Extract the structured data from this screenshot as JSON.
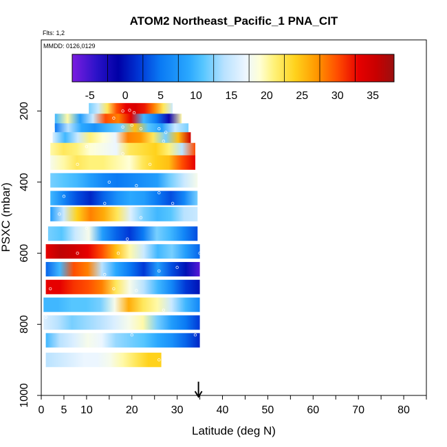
{
  "chart_data": {
    "type": "heatmap",
    "title": "ATOM2 Northeast_Pacific_1 PNA_CIT",
    "annotations": {
      "flights": "Flts: 1,2",
      "dates": "MMDD: 0126,0129"
    },
    "xlabel": "Latitude (deg N)",
    "ylabel": "PSXC (mbar)",
    "xlim": [
      0,
      85
    ],
    "ylim": [
      1000,
      0
    ],
    "x_ticks": [
      0,
      5,
      10,
      20,
      30,
      40,
      50,
      60,
      70,
      80
    ],
    "x_tick_labels": [
      "0",
      "5",
      "10",
      "20",
      "30",
      "40",
      "50",
      "60",
      "70",
      "80"
    ],
    "x_minor_ticks": [
      15,
      25,
      35,
      45,
      55,
      65,
      75,
      85
    ],
    "y_ticks": [
      200,
      400,
      600,
      800,
      1000
    ],
    "y_tick_labels": [
      "200",
      "400",
      "600",
      "800",
      "1000"
    ],
    "marker": {
      "latitude": 34.7,
      "symbol": "down-arrow"
    },
    "colorbar": {
      "min": -7.5,
      "max": 38,
      "ticks": [
        -5,
        0,
        5,
        10,
        15,
        20,
        25,
        30,
        35
      ],
      "tick_labels": [
        "-5",
        "0",
        "5",
        "10",
        "15",
        "20",
        "25",
        "30",
        "35"
      ],
      "divisions": [
        -7.5,
        -2.5,
        2.5,
        7.5,
        12.5,
        17.5,
        22.5,
        27.5,
        32.5,
        38
      ],
      "stops": [
        {
          "v": -7.5,
          "c": "#7b1de0"
        },
        {
          "v": -4,
          "c": "#2a12c8"
        },
        {
          "v": -1,
          "c": "#0000a6"
        },
        {
          "v": 2,
          "c": "#0037d6"
        },
        {
          "v": 5,
          "c": "#0a7af4"
        },
        {
          "v": 9,
          "c": "#2aa8ff"
        },
        {
          "v": 11,
          "c": "#56c6ff"
        },
        {
          "v": 14,
          "c": "#b9e2ff"
        },
        {
          "v": 17,
          "c": "#ecf6ff"
        },
        {
          "v": 19,
          "c": "#ffffd6"
        },
        {
          "v": 21,
          "c": "#fff27a"
        },
        {
          "v": 24,
          "c": "#ffd21c"
        },
        {
          "v": 27,
          "c": "#ff9900"
        },
        {
          "v": 30,
          "c": "#ff4d00"
        },
        {
          "v": 33,
          "c": "#e60000"
        },
        {
          "v": 35.5,
          "c": "#c80000"
        },
        {
          "v": 38,
          "c": "#9a1010"
        }
      ]
    },
    "strips": [
      {
        "pressure": 198,
        "lat": [
          10.5,
          29
        ],
        "values": [
          12,
          15,
          22,
          30,
          33,
          34,
          32,
          28,
          22,
          15
        ]
      },
      {
        "pressure": 228,
        "lat": [
          3,
          31
        ],
        "values": [
          10,
          20,
          8,
          15,
          30,
          28,
          33,
          10,
          5,
          -2,
          20
        ]
      },
      {
        "pressure": 255,
        "lat": [
          3,
          32.5
        ],
        "values": [
          5,
          14,
          9,
          7,
          10,
          12,
          25,
          11,
          8,
          15,
          12
        ]
      },
      {
        "pressure": 280,
        "lat": [
          2.5,
          33
        ],
        "values": [
          16,
          10,
          15,
          21,
          19,
          17,
          28,
          27,
          22,
          12,
          25,
          35
        ]
      },
      {
        "pressure": 310,
        "lat": [
          2,
          34
        ],
        "values": [
          20,
          22,
          21,
          19,
          18,
          17,
          22,
          23,
          24,
          21,
          14,
          30
        ]
      },
      {
        "pressure": 345,
        "lat": [
          2,
          34
        ],
        "values": [
          18,
          20,
          22,
          21,
          21,
          20,
          19,
          22,
          24,
          25,
          30,
          33
        ]
      },
      {
        "pressure": 395,
        "lat": [
          2,
          34.5
        ],
        "values": [
          12,
          11,
          10,
          8,
          6,
          5,
          6,
          7,
          8,
          12,
          15,
          18
        ]
      },
      {
        "pressure": 445,
        "lat": [
          2,
          34.5
        ],
        "values": [
          10,
          6,
          3,
          1,
          4,
          7,
          9,
          8,
          5,
          3,
          6,
          12
        ]
      },
      {
        "pressure": 490,
        "lat": [
          2,
          34.5
        ],
        "values": [
          8,
          15,
          24,
          28,
          26,
          22,
          16,
          12,
          10,
          11,
          14,
          15
        ]
      },
      {
        "pressure": 545,
        "lat": [
          1.5,
          34.5
        ],
        "values": [
          12,
          11,
          15,
          18,
          8,
          4,
          2,
          5,
          12,
          10,
          6,
          3
        ]
      },
      {
        "pressure": 595,
        "lat": [
          1,
          35
        ],
        "values": [
          33,
          36,
          35,
          33,
          30,
          25,
          20,
          15,
          10,
          12,
          8,
          4
        ]
      },
      {
        "pressure": 645,
        "lat": [
          1,
          35
        ],
        "values": [
          4,
          10,
          30,
          28,
          14,
          9,
          5,
          2,
          8,
          3,
          0,
          -6
        ]
      },
      {
        "pressure": 695,
        "lat": [
          1,
          35
        ],
        "values": [
          33,
          33,
          31,
          30,
          28,
          22,
          18,
          14,
          10,
          6,
          2,
          0
        ]
      },
      {
        "pressure": 745,
        "lat": [
          0.5,
          35
        ],
        "values": [
          10,
          10,
          11,
          11,
          12,
          18,
          26,
          22,
          20,
          15,
          10,
          6
        ]
      },
      {
        "pressure": 795,
        "lat": [
          0.5,
          35
        ],
        "values": [
          16,
          14,
          12,
          13,
          14,
          16,
          18,
          20,
          12,
          8,
          5,
          2
        ]
      },
      {
        "pressure": 845,
        "lat": [
          1,
          35
        ],
        "values": [
          10,
          14,
          16,
          18,
          17,
          13,
          12,
          11,
          9,
          7,
          4,
          1
        ]
      },
      {
        "pressure": 900,
        "lat": [
          1,
          26.5
        ],
        "values": [
          14,
          15,
          16,
          17,
          17,
          18,
          20,
          22,
          24,
          24
        ]
      }
    ],
    "samples": [
      [
        18,
        200
      ],
      [
        19.5,
        198
      ],
      [
        20.5,
        205
      ],
      [
        16,
        220
      ],
      [
        18,
        245
      ],
      [
        20,
        240
      ],
      [
        22,
        250
      ],
      [
        26,
        250
      ],
      [
        27.5,
        260
      ],
      [
        27,
        285
      ],
      [
        10,
        300
      ],
      [
        18,
        320
      ],
      [
        8,
        350
      ],
      [
        24,
        350
      ],
      [
        15,
        400
      ],
      [
        21,
        410
      ],
      [
        9,
        420
      ],
      [
        26,
        430
      ],
      [
        5,
        440
      ],
      [
        14,
        460
      ],
      [
        29,
        460
      ],
      [
        4,
        490
      ],
      [
        22,
        500
      ],
      [
        10,
        530
      ],
      [
        19,
        560
      ],
      [
        32,
        570
      ],
      [
        8,
        600
      ],
      [
        17,
        600
      ],
      [
        23,
        620
      ],
      [
        30,
        640
      ],
      [
        26,
        650
      ],
      [
        14,
        660
      ],
      [
        35,
        600
      ],
      [
        2,
        700
      ],
      [
        16,
        700
      ],
      [
        21,
        705
      ],
      [
        33,
        720
      ],
      [
        1,
        780
      ],
      [
        13,
        770
      ],
      [
        27,
        760
      ],
      [
        6,
        820
      ],
      [
        20,
        830
      ],
      [
        34,
        830
      ],
      [
        26,
        900
      ]
    ]
  }
}
